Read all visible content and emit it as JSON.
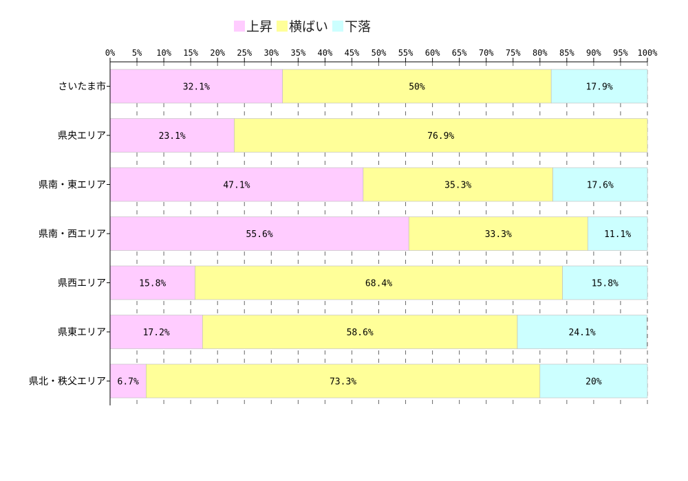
{
  "chart_data": {
    "type": "bar",
    "orientation": "horizontal",
    "stacked": "percent",
    "categories": [
      "さいたま市",
      "県央エリア",
      "県南・東エリア",
      "県南・西エリア",
      "県西エリア",
      "県東エリア",
      "県北・秩父エリア"
    ],
    "series": [
      {
        "name": "上昇",
        "color": "#ffccff",
        "values": [
          32.1,
          23.1,
          47.1,
          55.6,
          15.8,
          17.2,
          6.7
        ],
        "labels": [
          "32.1%",
          "23.1%",
          "47.1%",
          "55.6%",
          "15.8%",
          "17.2%",
          "6.7%"
        ]
      },
      {
        "name": "横ばい",
        "color": "#ffff99",
        "values": [
          50,
          76.9,
          35.3,
          33.3,
          68.4,
          58.6,
          73.3
        ],
        "labels": [
          "50%",
          "76.9%",
          "35.3%",
          "33.3%",
          "68.4%",
          "58.6%",
          "73.3%"
        ]
      },
      {
        "name": "下落",
        "color": "#ccffff",
        "values": [
          17.9,
          0,
          17.6,
          11.1,
          15.8,
          24.1,
          20
        ],
        "labels": [
          "17.9%",
          "",
          "17.6%",
          "11.1%",
          "15.8%",
          "24.1%",
          "20%"
        ]
      }
    ],
    "xticks": [
      "0%",
      "5%",
      "10%",
      "15%",
      "20%",
      "25%",
      "30%",
      "35%",
      "40%",
      "45%",
      "50%",
      "55%",
      "60%",
      "65%",
      "70%",
      "75%",
      "80%",
      "85%",
      "90%",
      "95%",
      "100%"
    ],
    "xlim": [
      0,
      100
    ],
    "grid": "vertical dashed",
    "legend_position": "top"
  }
}
